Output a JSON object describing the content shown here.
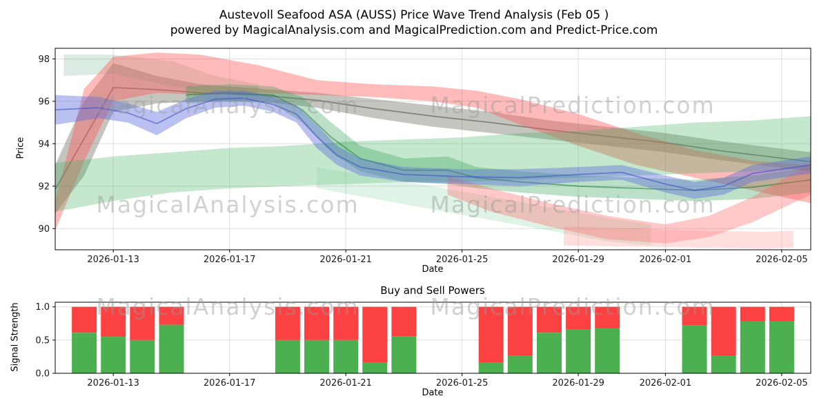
{
  "figure": {
    "title_line1": "Austevoll Seafood ASA (AUSS) Price Wave Trend Analysis (Feb 05 )",
    "title_line2": "powered by MagicalAnalysis.com and MagicalPrediction.com and Predict-Price.com",
    "watermark_left": "MagicalAnalysis.com",
    "watermark_right": "MagicalPrediction.com"
  },
  "price_chart": {
    "ylabel": "Price",
    "xlabel": "Date"
  },
  "power_chart": {
    "title": "Buy and Sell Powers",
    "ylabel": "Signal Strength",
    "xlabel": "Date"
  },
  "chart_data": [
    {
      "type": "area",
      "title": "Austevoll Seafood ASA (AUSS) Price Wave Trend Analysis (Feb 05 )",
      "xlabel": "Date",
      "ylabel": "Price",
      "x_start": "2026-01-11",
      "x_span_days": 26,
      "ylim": [
        89.0,
        98.5
      ],
      "yticks": [
        90,
        92,
        94,
        96,
        98
      ],
      "xticks": [
        "2026-01-13",
        "2026-01-17",
        "2026-01-21",
        "2026-01-25",
        "2026-01-29",
        "2026-02-01",
        "2026-02-05"
      ],
      "grid": true,
      "legend": "none",
      "bands": [
        {
          "name": "gray-trend",
          "color": "#6f6f60",
          "opacity": 0.4,
          "line": "#4a4a40",
          "points": [
            [
              0,
              90.7,
              93.0
            ],
            [
              1,
              92.5,
              96.0
            ],
            [
              2,
              95.5,
              97.8
            ],
            [
              3.5,
              95.9,
              97.2
            ],
            [
              5,
              96.0,
              96.8
            ],
            [
              7,
              96.0,
              96.6
            ],
            [
              9,
              95.7,
              96.4
            ],
            [
              11,
              95.2,
              96.1
            ],
            [
              13,
              94.8,
              95.8
            ],
            [
              15,
              94.5,
              95.5
            ],
            [
              17,
              94.2,
              95.1
            ],
            [
              19,
              93.9,
              94.8
            ],
            [
              21,
              93.6,
              94.5
            ],
            [
              23,
              93.2,
              94.1
            ],
            [
              26,
              92.7,
              93.6
            ]
          ]
        },
        {
          "name": "green-top",
          "color": "#55aa77",
          "opacity": 0.22,
          "points": [
            [
              0.3,
              97.2,
              98.2
            ],
            [
              2,
              97.3,
              98.2
            ],
            [
              4,
              96.7,
              97.9
            ],
            [
              5.5,
              96.4,
              97.2
            ],
            [
              7,
              96.2,
              96.8
            ]
          ]
        },
        {
          "name": "upper-red",
          "color": "#ff5b5b",
          "opacity": 0.42,
          "points": [
            [
              0,
              89.9,
              91.3
            ],
            [
              1,
              93.2,
              96.6
            ],
            [
              2,
              96.0,
              98.1
            ],
            [
              3.5,
              96.4,
              98.3
            ],
            [
              5,
              96.3,
              98.2
            ],
            [
              7,
              96.4,
              97.7
            ],
            [
              9,
              96.3,
              97.0
            ],
            [
              11,
              96.2,
              96.8
            ],
            [
              13,
              96.0,
              96.7
            ],
            [
              14.5,
              95.7,
              96.5
            ],
            [
              16,
              94.9,
              96.1
            ],
            [
              18,
              93.9,
              95.4
            ],
            [
              20,
              93.0,
              94.5
            ],
            [
              22,
              92.4,
              93.7
            ],
            [
              24,
              91.8,
              93.2
            ],
            [
              26,
              91.2,
              93.0
            ]
          ]
        },
        {
          "name": "green-fan",
          "color": "#3dae5c",
          "opacity": 0.3,
          "points": [
            [
              0,
              90.8,
              93.1
            ],
            [
              2,
              91.3,
              93.4
            ],
            [
              4,
              91.7,
              93.6
            ],
            [
              6,
              91.9,
              93.8
            ],
            [
              8,
              92.0,
              93.9
            ],
            [
              10,
              92.1,
              94.1
            ],
            [
              12,
              92.2,
              94.2
            ],
            [
              14,
              92.2,
              94.3
            ],
            [
              16,
              92.3,
              94.5
            ],
            [
              18,
              92.4,
              94.6
            ],
            [
              20,
              92.5,
              94.8
            ],
            [
              22,
              92.6,
              95.0
            ],
            [
              24,
              92.7,
              95.1
            ],
            [
              26,
              92.8,
              95.3
            ]
          ]
        },
        {
          "name": "green-desc",
          "color": "#2f9e50",
          "opacity": 0.32,
          "line": "#1d7a38",
          "points": [
            [
              4.5,
              95.9,
              96.7
            ],
            [
              6,
              96.0,
              96.8
            ],
            [
              7.5,
              95.9,
              96.7
            ],
            [
              8.5,
              95.0,
              96.2
            ],
            [
              9.5,
              93.6,
              95.0
            ],
            [
              10.5,
              92.7,
              93.9
            ],
            [
              12,
              92.2,
              93.3
            ],
            [
              13.5,
              92.1,
              93.4
            ],
            [
              14.5,
              91.9,
              92.9
            ],
            [
              16,
              91.7,
              92.7
            ],
            [
              18,
              91.5,
              92.5
            ],
            [
              20,
              91.4,
              92.4
            ],
            [
              22,
              91.3,
              92.3
            ],
            [
              24,
              91.4,
              92.5
            ],
            [
              26,
              91.7,
              92.9
            ]
          ]
        },
        {
          "name": "green-low",
          "color": "#7fd19b",
          "opacity": 0.25,
          "points": [
            [
              9,
              91.9,
              92.9
            ],
            [
              11,
              91.4,
              92.4
            ],
            [
              13,
              90.9,
              92.0
            ],
            [
              15,
              90.4,
              91.5
            ],
            [
              17,
              89.9,
              91.0
            ],
            [
              19,
              89.4,
              90.5
            ],
            [
              20.5,
              89.2,
              90.2
            ]
          ]
        },
        {
          "name": "lower-red-v",
          "color": "#ff5b5b",
          "opacity": 0.33,
          "points": [
            [
              13.5,
              91.6,
              92.5
            ],
            [
              15,
              90.8,
              91.9
            ],
            [
              17,
              90.1,
              91.2
            ],
            [
              19,
              89.5,
              90.6
            ],
            [
              21,
              89.3,
              90.2
            ],
            [
              22.5,
              89.6,
              90.6
            ],
            [
              24,
              90.3,
              91.5
            ],
            [
              26,
              91.6,
              93.1
            ]
          ]
        },
        {
          "name": "flat-pink",
          "color": "#ff8888",
          "opacity": 0.28,
          "points": [
            [
              17.5,
              89.2,
              90.1
            ],
            [
              20,
              89.15,
              90.0
            ],
            [
              22,
              89.1,
              89.9
            ],
            [
              24.5,
              89.05,
              89.85
            ],
            [
              25.4,
              89.1,
              89.9
            ]
          ]
        },
        {
          "name": "blue-wave",
          "color": "#5b6bdc",
          "opacity": 0.42,
          "line": "#3a49c0",
          "points": [
            [
              0,
              94.9,
              96.3
            ],
            [
              1.5,
              95.2,
              96.2
            ],
            [
              2.5,
              95.0,
              95.9
            ],
            [
              3.5,
              94.4,
              95.5
            ],
            [
              4.5,
              95.2,
              96.1
            ],
            [
              5.5,
              95.7,
              96.5
            ],
            [
              6.5,
              95.8,
              96.5
            ],
            [
              7.5,
              95.5,
              96.2
            ],
            [
              8.3,
              95.0,
              95.8
            ],
            [
              9,
              93.8,
              94.9
            ],
            [
              9.7,
              93.0,
              93.9
            ],
            [
              10.5,
              92.5,
              93.3
            ],
            [
              12,
              92.2,
              92.9
            ],
            [
              14,
              92.1,
              92.8
            ],
            [
              16,
              92.0,
              92.8
            ],
            [
              18,
              92.2,
              92.9
            ],
            [
              19.5,
              92.3,
              93.0
            ],
            [
              21,
              91.7,
              92.5
            ],
            [
              22,
              91.4,
              92.2
            ],
            [
              23,
              91.6,
              92.4
            ],
            [
              24,
              92.2,
              93.0
            ],
            [
              26,
              92.6,
              93.4
            ]
          ]
        }
      ]
    },
    {
      "type": "bar",
      "stacked": true,
      "title": "Buy and Sell Powers",
      "xlabel": "Date",
      "ylabel": "Signal Strength",
      "ylim": [
        0,
        1.07
      ],
      "yticks": [
        0,
        0.5,
        1
      ],
      "xticks": [
        "2026-01-13",
        "2026-01-17",
        "2026-01-21",
        "2026-01-25",
        "2026-01-29",
        "2026-02-01",
        "2026-02-05"
      ],
      "series": [
        {
          "name": "Buy",
          "color": "#4caf50"
        },
        {
          "name": "Sell",
          "color": "#fb4141"
        }
      ],
      "bars": [
        {
          "date": "2026-01-12",
          "buy": 0.61,
          "sell": 0.39
        },
        {
          "date": "2026-01-13",
          "buy": 0.55,
          "sell": 0.45
        },
        {
          "date": "2026-01-14",
          "buy": 0.5,
          "sell": 0.5
        },
        {
          "date": "2026-01-15",
          "buy": 0.73,
          "sell": 0.27
        },
        {
          "date": "2026-01-19",
          "buy": 0.5,
          "sell": 0.5
        },
        {
          "date": "2026-01-20",
          "buy": 0.5,
          "sell": 0.5
        },
        {
          "date": "2026-01-21",
          "buy": 0.5,
          "sell": 0.5
        },
        {
          "date": "2026-01-22",
          "buy": 0.16,
          "sell": 0.84
        },
        {
          "date": "2026-01-23",
          "buy": 0.56,
          "sell": 0.44
        },
        {
          "date": "2026-01-26",
          "buy": 0.16,
          "sell": 0.84
        },
        {
          "date": "2026-01-27",
          "buy": 0.27,
          "sell": 0.73
        },
        {
          "date": "2026-01-28",
          "buy": 0.61,
          "sell": 0.39
        },
        {
          "date": "2026-01-29",
          "buy": 0.66,
          "sell": 0.34
        },
        {
          "date": "2026-01-30",
          "buy": 0.68,
          "sell": 0.32
        },
        {
          "date": "2026-02-02",
          "buy": 0.72,
          "sell": 0.28
        },
        {
          "date": "2026-02-03",
          "buy": 0.27,
          "sell": 0.73
        },
        {
          "date": "2026-02-04",
          "buy": 0.78,
          "sell": 0.22
        },
        {
          "date": "2026-02-05",
          "buy": 0.78,
          "sell": 0.22
        }
      ]
    }
  ]
}
